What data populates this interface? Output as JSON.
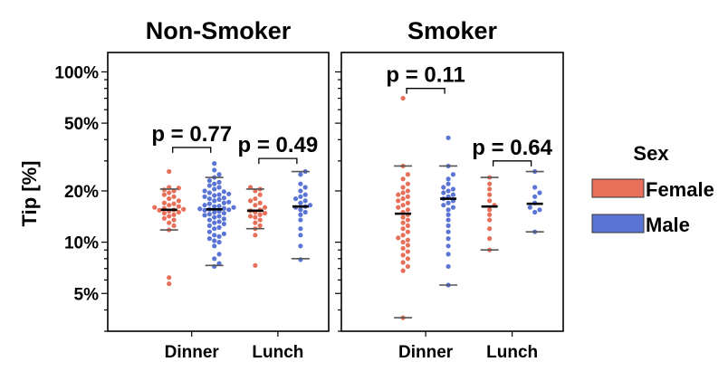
{
  "chart_data": {
    "type": "scatter",
    "ylabel": "Tip [%]",
    "yscale": "log",
    "ylim": [
      3,
      130
    ],
    "yticks": [
      {
        "value": 5,
        "label": "5%"
      },
      {
        "value": 10,
        "label": "10%"
      },
      {
        "value": 20,
        "label": "20%"
      },
      {
        "value": 50,
        "label": "50%"
      },
      {
        "value": 100,
        "label": "100%"
      }
    ],
    "categories": [
      "Dinner",
      "Lunch"
    ],
    "legend": {
      "title": "Sex",
      "items": [
        {
          "label": "Female",
          "color": "#e8705a"
        },
        {
          "label": "Male",
          "color": "#5b75d6"
        }
      ]
    },
    "colors": {
      "Female": "#e8705a",
      "Male": "#5b75d6"
    },
    "panels": [
      {
        "title": "Non-Smoker",
        "groups": [
          {
            "category": "Dinner",
            "sex": "Female",
            "median": 15.5,
            "min": 5.7,
            "max": 26,
            "p10": 11.8,
            "p90": 20.5,
            "values": [
              5.7,
              6.2,
              11.8,
              12.5,
              13.0,
              13.5,
              13.8,
              14.2,
              14.5,
              14.8,
              15.0,
              15.2,
              15.4,
              15.5,
              15.6,
              15.8,
              16.0,
              16.2,
              16.5,
              16.8,
              17.0,
              17.5,
              18.0,
              18.5,
              19.0,
              19.5,
              20.0,
              20.3,
              20.8,
              21.0,
              26.0
            ]
          },
          {
            "category": "Dinner",
            "sex": "Male",
            "median": 15.6,
            "min": 7.2,
            "max": 29,
            "p10": 7.3,
            "p90": 24.0,
            "values": [
              7.2,
              7.5,
              8.0,
              8.5,
              9.5,
              10.0,
              10.2,
              10.5,
              10.8,
              11.0,
              11.2,
              11.5,
              12.0,
              12.2,
              12.5,
              12.8,
              13.0,
              13.2,
              13.5,
              13.7,
              14.0,
              14.2,
              14.4,
              14.6,
              14.8,
              15.0,
              15.2,
              15.4,
              15.5,
              15.6,
              15.7,
              15.8,
              16.0,
              16.2,
              16.3,
              16.5,
              16.8,
              17.0,
              17.2,
              17.5,
              17.8,
              18.0,
              18.2,
              18.5,
              18.8,
              19.0,
              19.2,
              19.5,
              19.8,
              20.0,
              20.5,
              21.0,
              21.5,
              22.0,
              22.5,
              23.0,
              24.0,
              25.0,
              26.5,
              29.0
            ]
          },
          {
            "category": "Lunch",
            "sex": "Female",
            "median": 15.3,
            "min": 7.3,
            "max": 21,
            "p10": 12.0,
            "p90": 20.5,
            "values": [
              7.3,
              11.0,
              12.0,
              12.5,
              13.0,
              13.5,
              14.0,
              14.2,
              14.5,
              14.8,
              15.0,
              15.3,
              15.5,
              16.0,
              16.5,
              17.0,
              17.5,
              18.0,
              19.0,
              20.0,
              20.5,
              21.0
            ]
          },
          {
            "category": "Lunch",
            "sex": "Male",
            "median": 16.2,
            "min": 7.9,
            "max": 26,
            "p10": 8.0,
            "p90": 26.0,
            "values": [
              7.9,
              9.5,
              11.0,
              12.0,
              13.5,
              14.5,
              15.0,
              15.5,
              16.0,
              16.2,
              16.5,
              17.0,
              17.5,
              18.0,
              18.5,
              19.0,
              20.0,
              21.0,
              22.0,
              25.0,
              26.0
            ]
          }
        ],
        "comparisons": [
          {
            "category": "Dinner",
            "label": "p = 0.77",
            "y": 36
          },
          {
            "category": "Lunch",
            "label": "p = 0.49",
            "y": 31
          }
        ]
      },
      {
        "title": "Smoker",
        "groups": [
          {
            "category": "Dinner",
            "sex": "Female",
            "median": 14.7,
            "min": 3.6,
            "max": 70,
            "p10": 3.6,
            "p90": 28.0,
            "values": [
              3.6,
              6.8,
              7.2,
              7.6,
              8.0,
              8.4,
              8.8,
              9.2,
              9.6,
              10.0,
              10.3,
              10.6,
              11.0,
              11.5,
              12.0,
              12.5,
              13.0,
              13.5,
              14.0,
              14.5,
              15.0,
              15.5,
              16.0,
              16.5,
              17.0,
              17.5,
              18.0,
              18.5,
              19.0,
              19.5,
              20.0,
              21.0,
              22.0,
              23.5,
              25.0,
              28.0,
              70.0
            ]
          },
          {
            "category": "Dinner",
            "sex": "Male",
            "median": 18.0,
            "min": 5.6,
            "max": 41,
            "p10": 5.6,
            "p90": 28.0,
            "values": [
              5.6,
              7.2,
              8.5,
              9.5,
              10.5,
              11.5,
              12.5,
              13.5,
              14.5,
              15.5,
              16.0,
              16.5,
              17.0,
              17.5,
              18.0,
              18.5,
              19.0,
              19.5,
              20.0,
              20.5,
              21.0,
              22.0,
              23.5,
              25.0,
              28.0,
              41.0
            ]
          },
          {
            "category": "Lunch",
            "sex": "Female",
            "median": 16.2,
            "min": 9.0,
            "max": 24,
            "p10": 9.0,
            "p90": 24.0,
            "values": [
              9.0,
              10.5,
              12.0,
              13.5,
              14.5,
              15.5,
              16.5,
              17.5,
              19.0,
              20.5,
              22.0,
              24.0
            ]
          },
          {
            "category": "Lunch",
            "sex": "Male",
            "median": 16.8,
            "min": 11.5,
            "max": 26,
            "p10": 11.5,
            "p90": 26.0,
            "values": [
              11.5,
              15.0,
              15.5,
              16.0,
              17.0,
              18.5,
              19.5,
              21.0,
              26.0
            ]
          }
        ],
        "comparisons": [
          {
            "category": "Dinner",
            "label": "p = 0.11",
            "y": 80
          },
          {
            "category": "Lunch",
            "label": "p = 0.64",
            "y": 30
          }
        ]
      }
    ]
  }
}
